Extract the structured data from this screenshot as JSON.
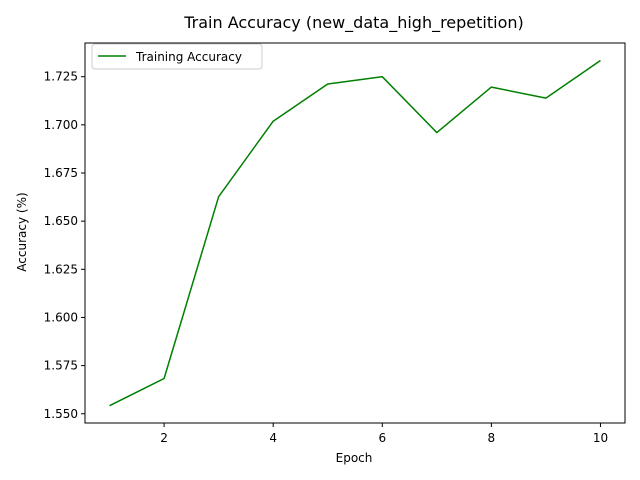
{
  "chart_data": {
    "type": "line",
    "title": "Train Accuracy (new_data_high_repetition)",
    "xlabel": "Epoch",
    "ylabel": "Accuracy (%)",
    "xlim": [
      0.55,
      10.45
    ],
    "ylim": [
      1.5452,
      1.7425
    ],
    "xticks": [
      2,
      4,
      6,
      8,
      10
    ],
    "yticks": [
      1.55,
      1.575,
      1.6,
      1.625,
      1.65,
      1.675,
      1.7,
      1.725
    ],
    "xtick_labels": [
      "2",
      "4",
      "6",
      "8",
      "10"
    ],
    "ytick_labels": [
      "1.550",
      "1.575",
      "1.600",
      "1.625",
      "1.650",
      "1.675",
      "1.700",
      "1.725"
    ],
    "grid": false,
    "legend_position": "upper-left",
    "series": [
      {
        "name": "Training Accuracy",
        "color": "#008000",
        "x": [
          1,
          2,
          3,
          4,
          5,
          6,
          7,
          8,
          9,
          10
        ],
        "y": [
          1.5542,
          1.5683,
          1.6627,
          1.7019,
          1.7212,
          1.725,
          1.696,
          1.7196,
          1.7139,
          1.7334
        ]
      }
    ]
  }
}
